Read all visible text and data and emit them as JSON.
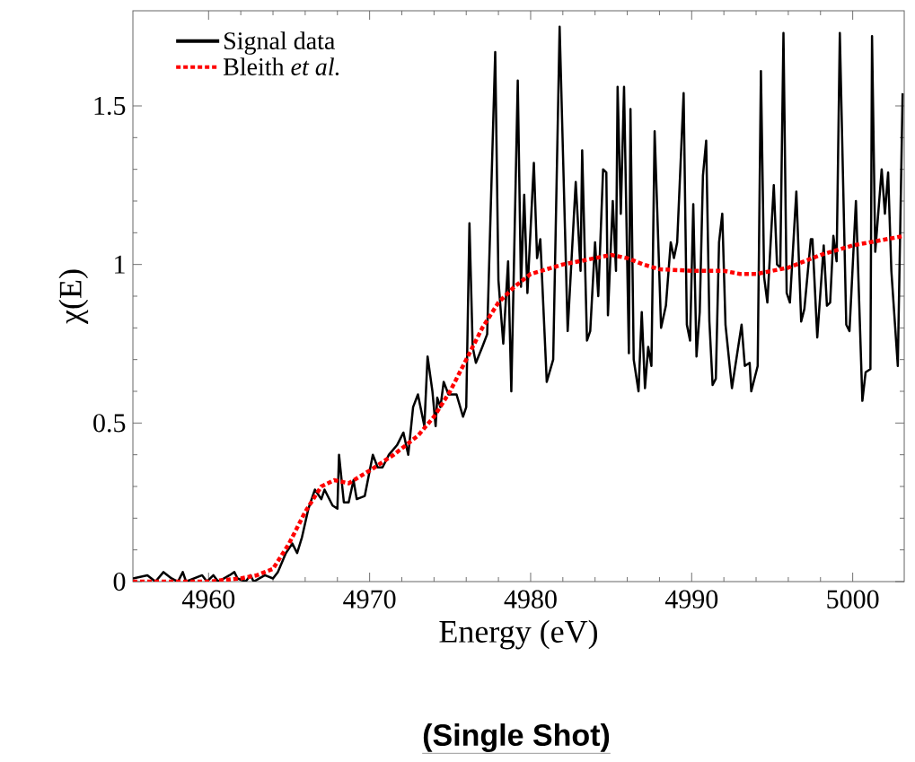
{
  "chart_data": {
    "type": "line",
    "xlabel": "Energy (eV)",
    "ylabel": "χ(E)",
    "xlim": [
      4955.3,
      5003.2
    ],
    "ylim": [
      0,
      1.8
    ],
    "xticks": [
      4960,
      4970,
      4980,
      4990,
      5000
    ],
    "yticks": [
      0,
      0.5,
      1,
      1.5
    ],
    "legend": "top left",
    "annotations": [
      "(Single Shot)"
    ],
    "series": [
      {
        "name": "Signal data",
        "color": "#000000",
        "line_style": "solid",
        "x": [
          4955.3,
          4956.2,
          4956.7,
          4957.2,
          4957.7,
          4958.1,
          4958.4,
          4958.6,
          4959.6,
          4959.9,
          4960.3,
          4960.6,
          4961.3,
          4961.6,
          4961.8,
          4962.3,
          4962.6,
          4962.8,
          4963.5,
          4964.0,
          4964.3,
          4964.8,
          4965.2,
          4965.5,
          4965.8,
          4966.2,
          4966.6,
          4967.0,
          4967.2,
          4967.7,
          4968.0,
          4968.1,
          4968.4,
          4968.7,
          4969.0,
          4969.2,
          4969.7,
          4970.2,
          4970.5,
          4970.8,
          4971.2,
          4971.7,
          4972.1,
          4972.4,
          4972.7,
          4973.0,
          4973.4,
          4973.6,
          4973.9,
          4974.1,
          4974.2,
          4974.4,
          4974.6,
          4974.9,
          4975.4,
          4975.8,
          4976.0,
          4976.2,
          4976.4,
          4976.6,
          4977.0,
          4977.3,
          4977.8,
          4978.0,
          4978.3,
          4978.6,
          4978.8,
          4979.2,
          4979.4,
          4979.6,
          4979.8,
          4980.2,
          4980.4,
          4980.6,
          4981.0,
          4981.4,
          4981.8,
          4982.3,
          4982.8,
          4983.1,
          4983.2,
          4983.5,
          4983.7,
          4984.0,
          4984.2,
          4984.5,
          4984.7,
          4984.8,
          4985.1,
          4985.3,
          4985.4,
          4985.6,
          4985.8,
          4986.1,
          4986.2,
          4986.4,
          4986.7,
          4986.9,
          4987.1,
          4987.3,
          4987.5,
          4987.7,
          4988.1,
          4988.4,
          4988.7,
          4988.9,
          4989.1,
          4989.5,
          4989.7,
          4989.9,
          4990.1,
          4990.3,
          4990.5,
          4990.7,
          4990.9,
          4991.1,
          4991.3,
          4991.5,
          4991.7,
          4991.9,
          4992.1,
          4992.5,
          4992.8,
          4993.1,
          4993.3,
          4993.6,
          4993.7,
          4994.1,
          4994.3,
          4994.5,
          4994.7,
          4995.1,
          4995.3,
          4995.5,
          4995.7,
          4995.9,
          4996.1,
          4996.5,
          4996.8,
          4997.0,
          4997.4,
          4997.5,
          4997.8,
          4998.2,
          4998.4,
          4998.6,
          4998.8,
          4999.0,
          4999.2,
          4999.6,
          4999.8,
          5000.2,
          5000.6,
          5000.8,
          5001.1,
          5001.2,
          5001.4,
          5001.8,
          5002.0,
          5002.2,
          5002.4,
          5002.8,
          5003.1
        ],
        "values": [
          0.01,
          0.02,
          0,
          0.03,
          0.01,
          0,
          0.03,
          0,
          0.02,
          0,
          0.02,
          0,
          0.02,
          0.03,
          0.01,
          0,
          0.02,
          0,
          0.02,
          0.01,
          0.03,
          0.09,
          0.12,
          0.09,
          0.14,
          0.23,
          0.29,
          0.26,
          0.29,
          0.24,
          0.23,
          0.4,
          0.25,
          0.25,
          0.32,
          0.26,
          0.27,
          0.4,
          0.36,
          0.36,
          0.4,
          0.43,
          0.47,
          0.4,
          0.55,
          0.59,
          0.49,
          0.71,
          0.6,
          0.49,
          0.58,
          0.55,
          0.63,
          0.59,
          0.59,
          0.52,
          0.55,
          1.13,
          0.74,
          0.69,
          0.74,
          0.78,
          1.67,
          0.95,
          0.75,
          1.01,
          0.6,
          1.58,
          0.93,
          1.22,
          0.91,
          1.32,
          1.02,
          1.08,
          0.63,
          0.7,
          1.75,
          0.79,
          1.26,
          0.98,
          1.36,
          0.76,
          0.79,
          1.07,
          0.9,
          1.3,
          1.29,
          0.84,
          1.2,
          0.98,
          1.56,
          1.16,
          1.56,
          0.72,
          1.49,
          0.7,
          0.6,
          0.85,
          0.61,
          0.74,
          0.68,
          1.42,
          0.8,
          0.87,
          1.07,
          1.02,
          1.07,
          1.54,
          0.81,
          0.76,
          1.19,
          0.71,
          0.85,
          1.28,
          1.39,
          0.82,
          0.62,
          0.64,
          1.07,
          1.16,
          0.81,
          0.61,
          0.71,
          0.81,
          0.68,
          0.69,
          0.6,
          0.68,
          1.61,
          0.96,
          0.88,
          1.25,
          1.0,
          0.99,
          1.73,
          0.91,
          0.88,
          1.23,
          0.82,
          0.86,
          1.08,
          1.08,
          0.77,
          1.06,
          0.87,
          0.88,
          1.09,
          1.01,
          1.73,
          0.81,
          0.79,
          1.2,
          0.57,
          0.66,
          0.67,
          1.72,
          1.04,
          1.3,
          1.16,
          1.29,
          0.98,
          0.68,
          1.54
        ]
      },
      {
        "name": "Bleith *et al.*",
        "color": "#ff0000",
        "line_style": "dotted",
        "x": [
          4955.3,
          4960,
          4962,
          4963,
          4964,
          4965,
          4966,
          4967,
          4967.8,
          4968.7,
          4970,
          4971.5,
          4973,
          4974,
          4975,
          4976,
          4977,
          4978,
          4979,
          4980,
          4982,
          4984,
          4985,
          4986,
          4987,
          4988,
          4990,
          4992,
          4993,
          4994,
          4996,
          4998,
          5000,
          5003.2
        ],
        "values": [
          0,
          0,
          0.01,
          0.02,
          0.04,
          0.12,
          0.22,
          0.3,
          0.32,
          0.31,
          0.35,
          0.4,
          0.46,
          0.52,
          0.6,
          0.7,
          0.8,
          0.88,
          0.93,
          0.97,
          1.0,
          1.02,
          1.03,
          1.02,
          1.0,
          0.985,
          0.98,
          0.98,
          0.97,
          0.97,
          0.99,
          1.03,
          1.06,
          1.09
        ]
      }
    ]
  }
}
